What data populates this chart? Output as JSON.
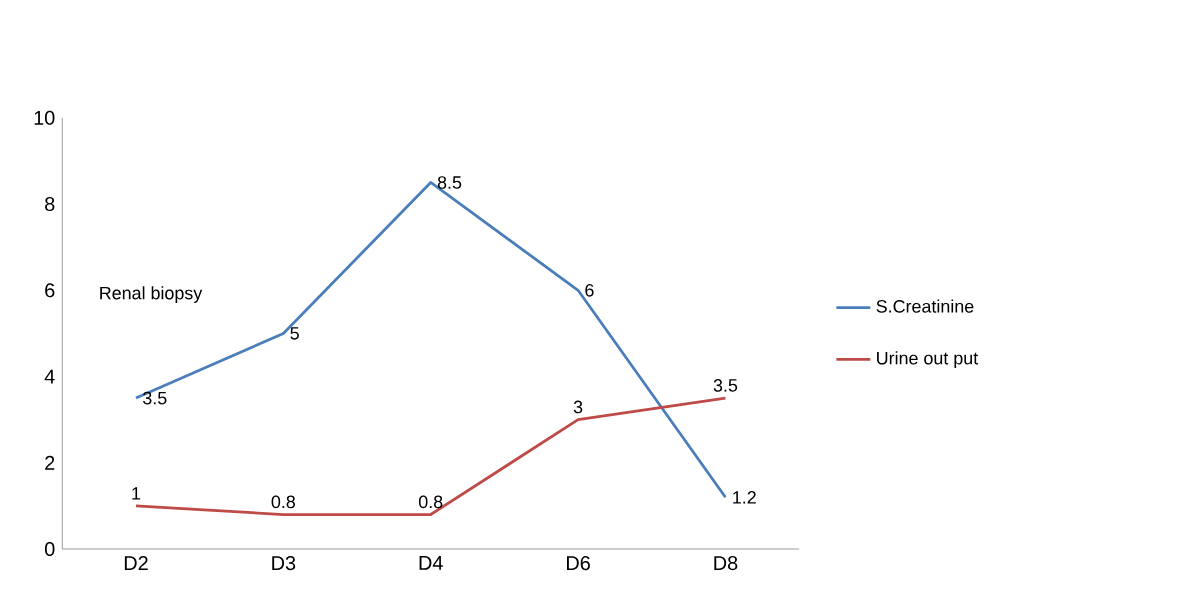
{
  "chart_data": {
    "type": "line",
    "categories": [
      "D2",
      "D3",
      "D4",
      "D6",
      "D8"
    ],
    "series": [
      {
        "name": "S.Creatinine",
        "color": "#4a7ebb",
        "values": [
          3.5,
          5,
          8.5,
          6,
          1.2
        ]
      },
      {
        "name": "Urine out put",
        "color": "#be4b48",
        "values": [
          1,
          0.8,
          0.8,
          3,
          3.5
        ]
      }
    ],
    "ylim": [
      0,
      10
    ],
    "yticks": [
      0,
      2,
      4,
      6,
      8,
      10
    ],
    "legend": "right",
    "data_labels": true,
    "marker": "none",
    "annotations": [
      "Renal biopsy"
    ]
  }
}
